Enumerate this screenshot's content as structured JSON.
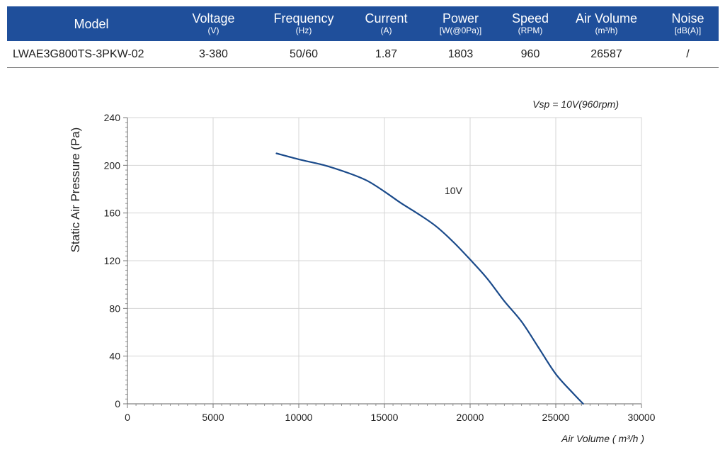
{
  "spec_table": {
    "columns": [
      {
        "label": "Model",
        "unit": ""
      },
      {
        "label": "Voltage",
        "unit": "(V)"
      },
      {
        "label": "Frequency",
        "unit": "(Hz)"
      },
      {
        "label": "Current",
        "unit": "(A)"
      },
      {
        "label": "Power",
        "unit": "[W(@0Pa)]"
      },
      {
        "label": "Speed",
        "unit": "(RPM)"
      },
      {
        "label": "Air Volume",
        "unit": "(m³/h)"
      },
      {
        "label": "Noise",
        "unit": "[dB(A)]"
      }
    ],
    "row": [
      "LWAE3G800TS-3PKW-02",
      "3-380",
      "50/60",
      "1.87",
      "1803",
      "960",
      "26587",
      "/"
    ]
  },
  "colors": {
    "header_bg": "#1f4f9b",
    "curve": "#1a4a8a",
    "grid": "#d4d4d4"
  },
  "chart_data": {
    "type": "line",
    "title": "",
    "annotation": "Vsp = 10V(960rpm)",
    "xlabel": "Air Volume ( m³/h )",
    "ylabel": "Static Air Pressure  (Pa)",
    "xlim": [
      0,
      30000
    ],
    "ylim": [
      0,
      240
    ],
    "xticks": [
      0,
      5000,
      10000,
      15000,
      20000,
      25000,
      30000
    ],
    "yticks": [
      0,
      40,
      80,
      120,
      160,
      200,
      240
    ],
    "grid": true,
    "series": [
      {
        "name": "10V",
        "x": [
          8700,
          10000,
          11500,
          13000,
          14000,
          15000,
          16000,
          17000,
          18000,
          19000,
          20000,
          21000,
          22000,
          23000,
          24000,
          25000,
          26000,
          26600
        ],
        "y": [
          210,
          205,
          200,
          193,
          187,
          178,
          168,
          159,
          149,
          136,
          121,
          105,
          86,
          69,
          47,
          25,
          9,
          0
        ]
      }
    ]
  }
}
